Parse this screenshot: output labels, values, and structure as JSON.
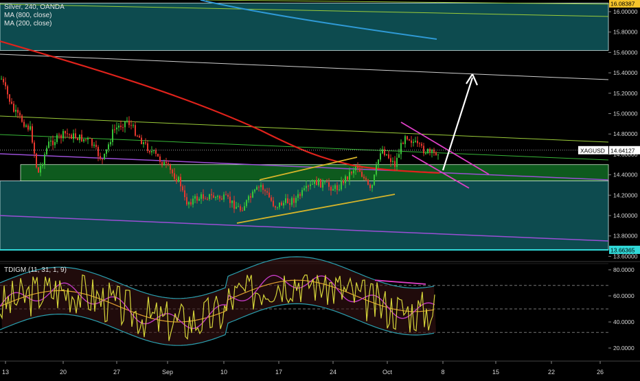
{
  "main_legend": {
    "title": "Silver, 240, OANDA",
    "ma800": "MA (800, close)",
    "ma200": "MA (200, close)"
  },
  "osc_legend": "TDIGM (11, 31, 1, 9)",
  "symbol_label": "XAGUSD",
  "price_labels": {
    "top_line": "16.08387",
    "last_price": "14.64127",
    "bottom_line": "13.66365"
  },
  "colors": {
    "background": "#000000",
    "zone_teal": "#0d4b4f",
    "zone_green": "#0e5a1e",
    "ma200": "#e0221b",
    "ma800": "#2f9ad6",
    "up_candle": "#38c43a",
    "down_candle": "#e5372d",
    "purple_line": "#9b4fd6",
    "magenta": "#e040c8",
    "yellow": "#d6b52a",
    "white_arrow": "#ffffff",
    "osc_price": "#d6d63a",
    "osc_signal": "#c03ac0",
    "osc_band": "#2aa0b0",
    "osc_mid": "#e0a030"
  },
  "chart_data": [
    {
      "type": "candlestick",
      "title": "Silver, 240, OANDA",
      "series": [
        {
          "name": "MA (800, close)"
        },
        {
          "name": "MA (200, close)"
        }
      ],
      "y_axis_ticks": [
        "16.00000",
        "15.80000",
        "15.60000",
        "15.40000",
        "15.20000",
        "15.00000",
        "14.80000",
        "14.60000",
        "14.40000",
        "14.20000",
        "14.00000",
        "13.80000",
        "13.60000"
      ],
      "ylim": [
        13.58,
        16.1
      ],
      "x_axis_ticks": [
        "13",
        "20",
        "27",
        "Sep",
        "10",
        "17",
        "24",
        "Oct",
        "8",
        "15",
        "22",
        "26"
      ],
      "zones": [
        {
          "from": 15.62,
          "to": 16.08387,
          "color": "teal"
        },
        {
          "from": 13.66365,
          "to": 14.34,
          "color": "teal"
        },
        {
          "from": 14.34,
          "to": 14.5,
          "color": "green"
        }
      ],
      "last_price": 14.64127
    },
    {
      "type": "line",
      "title": "TDIGM (11, 31, 1, 9)",
      "y_axis_ticks": [
        "80.0000",
        "60.0000",
        "40.0000",
        "20.0000"
      ],
      "ylim": [
        10,
        85
      ],
      "levels": [
        68,
        50,
        32
      ]
    }
  ]
}
